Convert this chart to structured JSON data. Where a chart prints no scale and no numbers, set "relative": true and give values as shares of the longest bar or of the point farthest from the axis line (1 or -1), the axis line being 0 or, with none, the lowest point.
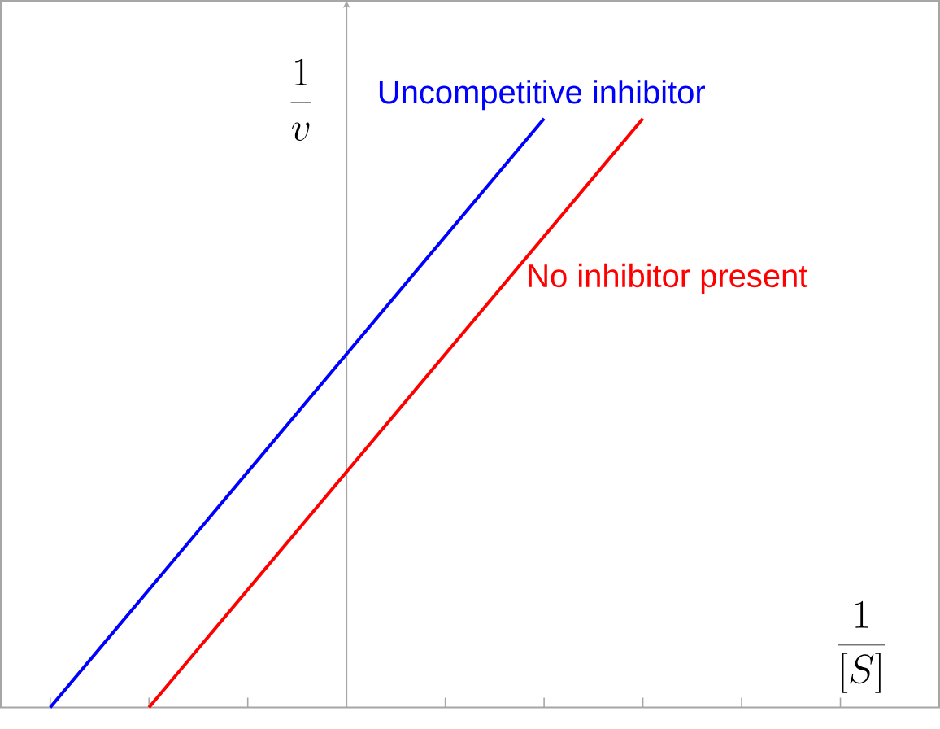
{
  "chart_data": {
    "type": "line",
    "relative": true,
    "xlabel": "\\frac{1}{[S]}",
    "ylabel": "\\frac{1}{v}",
    "categories": [
      null,
      null,
      null,
      null,
      null,
      null,
      null,
      null,
      null
    ],
    "series": [
      {
        "name": "Uncompetitive inhibitor",
        "color": "#0000ff",
        "values": [
          0,
          0.2,
          0.4,
          0.6,
          0.8,
          1,
          null,
          null,
          null
        ]
      },
      {
        "name": "No inhibitor present",
        "color": "#ff0000",
        "values": [
          null,
          0,
          0.2,
          0.4,
          0.6,
          0.8,
          1,
          null,
          null
        ]
      }
    ],
    "grid": false
  }
}
